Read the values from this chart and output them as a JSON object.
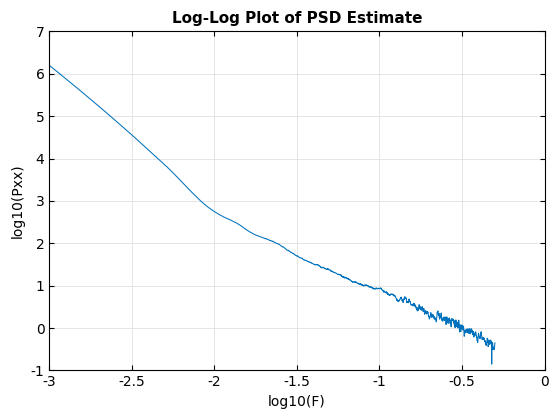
{
  "title": "Log-Log Plot of PSD Estimate",
  "xlabel": "log10(F)",
  "ylabel": "log10(Pxx)",
  "xlim": [
    -3,
    0
  ],
  "ylim": [
    -1,
    7
  ],
  "xticks": [
    -3,
    -2.5,
    -2,
    -1.5,
    -1,
    -0.5,
    0
  ],
  "yticks": [
    -1,
    0,
    1,
    2,
    3,
    4,
    5,
    6,
    7
  ],
  "line_color": "#0072BD",
  "line_width": 0.75,
  "bg_color": "#FFFFFF",
  "grid_color": "#E0E0E0",
  "title_fontsize": 11,
  "label_fontsize": 10,
  "tick_fontsize": 10,
  "figsize": [
    5.6,
    4.2
  ],
  "dpi": 100
}
